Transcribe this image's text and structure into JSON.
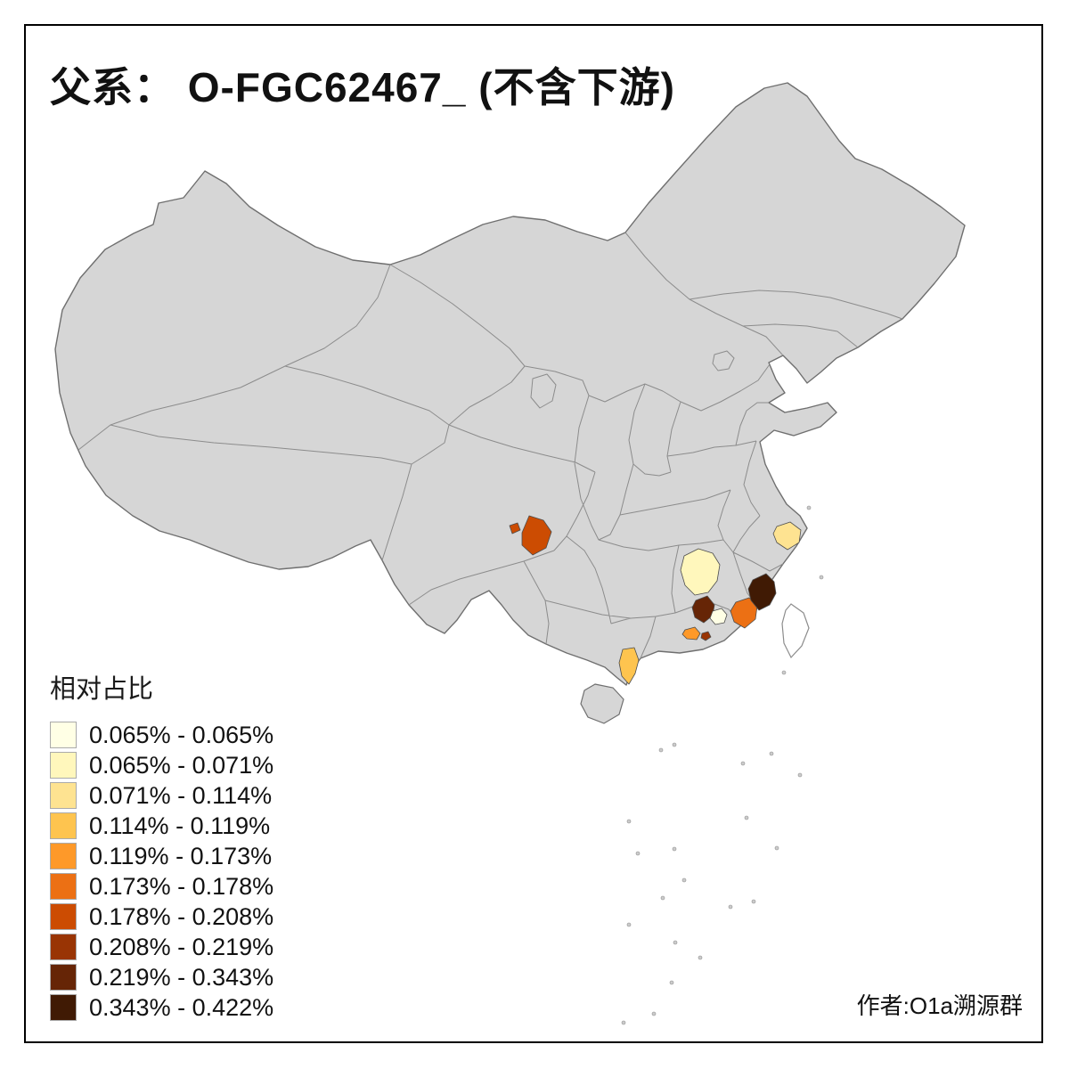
{
  "page": {
    "title": "父系： O-FGC62467_ (不含下游)",
    "attribution": "作者:O1a溯源群",
    "frame_color": "#000000",
    "background": "#ffffff"
  },
  "legend": {
    "title": "相对占比",
    "items": [
      {
        "label": "0.065% - 0.065%",
        "color": "#FFFFE5"
      },
      {
        "label": "0.065% - 0.071%",
        "color": "#FFF7BC"
      },
      {
        "label": "0.071% - 0.114%",
        "color": "#FEE391"
      },
      {
        "label": "0.114% - 0.119%",
        "color": "#FEC44F"
      },
      {
        "label": "0.119% - 0.173%",
        "color": "#FE9929"
      },
      {
        "label": "0.173% - 0.178%",
        "color": "#EC7014"
      },
      {
        "label": "0.178% - 0.208%",
        "color": "#CC4C02"
      },
      {
        "label": "0.208% - 0.219%",
        "color": "#993404"
      },
      {
        "label": "0.219% - 0.343%",
        "color": "#662506"
      },
      {
        "label": "0.343% - 0.422%",
        "color": "#401A04"
      }
    ]
  },
  "map": {
    "base_fill": "#d6d6d6",
    "country_border": "#6f6f6f",
    "province_border": "#8c8c8c",
    "no_data_fill": "#ffffff",
    "regions": {
      "chongqing": {
        "color": "#CC4C02"
      },
      "chongqing-west": {
        "color": "#CC4C02"
      },
      "south-jiangxi": {
        "color": "#FFF7BC"
      },
      "coastal-zhejiang": {
        "color": "#FEE391"
      },
      "central-fujian": {
        "color": "#401A04"
      },
      "south-fujian": {
        "color": "#EC7014"
      },
      "east-guangdong": {
        "color": "#662506"
      },
      "chaoshan": {
        "color": "#FFFFE5"
      },
      "west-guangdong-a": {
        "color": "#FE9929"
      },
      "west-guangdong-b": {
        "color": "#993404"
      },
      "leizhou-peninsula": {
        "color": "#FEC44F"
      }
    }
  }
}
